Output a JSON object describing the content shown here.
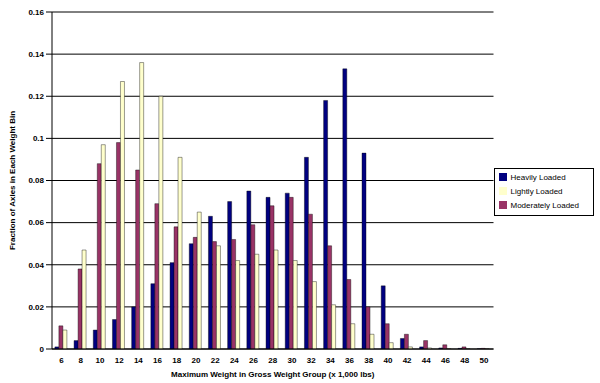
{
  "chart_data": {
    "type": "bar",
    "x_label": "Maximum Weight in Gross Weight Group (x 1,000 lbs)",
    "y_label": "Fraction of Axles in Each Weight Bin",
    "categories": [
      "6",
      "8",
      "10",
      "12",
      "14",
      "16",
      "18",
      "20",
      "22",
      "24",
      "26",
      "28",
      "30",
      "32",
      "34",
      "36",
      "38",
      "40",
      "42",
      "44",
      "46",
      "48",
      "50"
    ],
    "series": [
      {
        "name": "Heavily Loaded",
        "color": "#000080",
        "values": [
          0.001,
          0.004,
          0.009,
          0.014,
          0.02,
          0.031,
          0.041,
          0.05,
          0.063,
          0.07,
          0.075,
          0.072,
          0.074,
          0.091,
          0.118,
          0.133,
          0.093,
          0.03,
          0.005,
          0.001,
          0.0005,
          0.0003,
          0.0001
        ]
      },
      {
        "name": "Moderately Loaded",
        "color": "#993366",
        "values": [
          0.011,
          0.038,
          0.088,
          0.098,
          0.085,
          0.069,
          0.058,
          0.053,
          0.051,
          0.052,
          0.059,
          0.068,
          0.072,
          0.064,
          0.049,
          0.033,
          0.02,
          0.012,
          0.007,
          0.004,
          0.002,
          0.001,
          0.0003
        ]
      },
      {
        "name": "Lightly Loaded",
        "color": "#FFFFCC",
        "values": [
          0.009,
          0.047,
          0.097,
          0.127,
          0.136,
          0.12,
          0.091,
          0.065,
          0.049,
          0.042,
          0.045,
          0.047,
          0.042,
          0.032,
          0.021,
          0.012,
          0.007,
          0.003,
          0.001,
          0.0005,
          0.0002,
          0.0001,
          0.0001
        ]
      }
    ],
    "ylim": [
      0,
      0.16
    ],
    "yticks": [
      0,
      0.02,
      0.04,
      0.06,
      0.08,
      0.1,
      0.12,
      0.14,
      0.16
    ],
    "grid": true,
    "legend": "right"
  }
}
